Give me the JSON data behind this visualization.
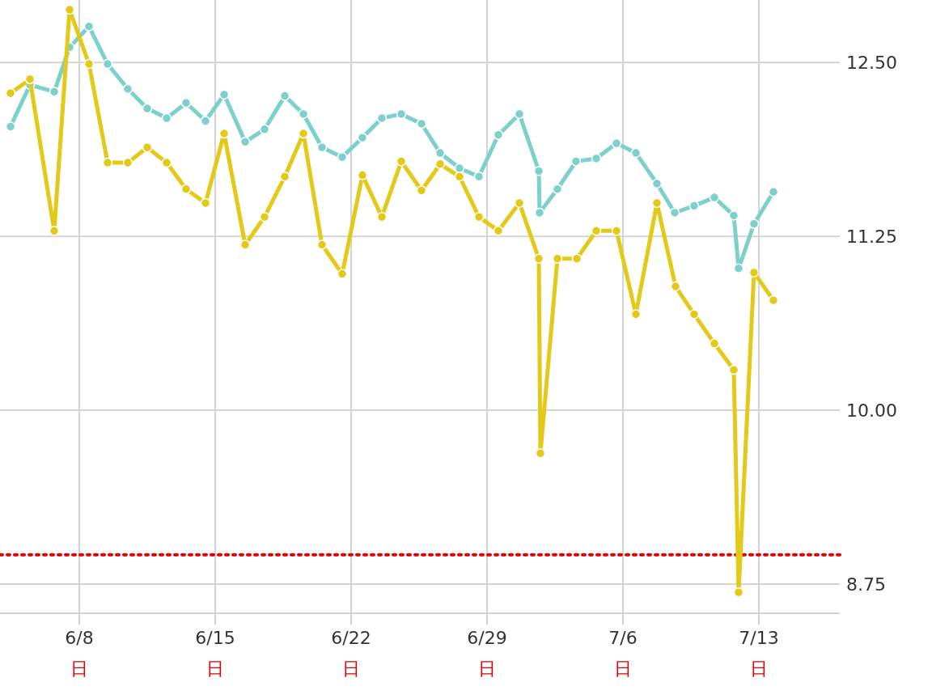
{
  "chart_data": {
    "type": "line",
    "xlim": [
      "--06-03T22:00",
      "--07-17T04:00"
    ],
    "ylim": [
      8.54,
      12.95
    ],
    "xticks": [
      {
        "value": "--06-08",
        "label": "6/8\n日"
      },
      {
        "value": "--06-15",
        "label": "6/15\n日"
      },
      {
        "value": "--06-22",
        "label": "6/22\n日"
      },
      {
        "value": "--06-29",
        "label": "6/29\n日"
      },
      {
        "value": "--07-06",
        "label": "7/6\n日"
      },
      {
        "value": "--07-13",
        "label": "7/13\n日"
      }
    ],
    "yticks": [
      {
        "value": 8.75,
        "label": "8.75"
      },
      {
        "value": 10,
        "label": "10.00"
      },
      {
        "value": 11.25,
        "label": "11.25"
      },
      {
        "value": 12.5,
        "label": "12.50"
      }
    ],
    "grid": true,
    "marker": "circle",
    "line_style": "solid",
    "series": [
      {
        "color": "#7dd0cc",
        "x": [
          "--06-04T11:00",
          "--06-05T11:00",
          "--06-06T17:00",
          "--06-07T12:00",
          "--06-08T12:00",
          "--06-09T11:00",
          "--06-10T12:00",
          "--06-11T12:00",
          "--06-12T12:00",
          "--06-13T12:00",
          "--06-14T12:00",
          "--06-15T11:00",
          "--06-16T13:00",
          "--06-17T13:00",
          "--06-18T14:00",
          "--06-19T13:00",
          "--06-20T12:00",
          "--06-21T13:00",
          "--06-22T14:00",
          "--06-23T14:00",
          "--06-24T14:00",
          "--06-25T15:00",
          "--06-26T14:00",
          "--06-27T14:00",
          "--06-28T14:00",
          "--06-29T14:00",
          "--06-30T16:00",
          "--07-01T16:00",
          "--07-01T17:00",
          "--07-02T15:00",
          "--07-03T14:00",
          "--07-04T15:00",
          "--07-05T16:00",
          "--07-06T16:00",
          "--07-07T18:00",
          "--07-08T16:00",
          "--07-09T16:00",
          "--07-10T17:00",
          "--07-11T17:00",
          "--07-11T23:00",
          "--07-12T18:00",
          "--07-13T18:00"
        ],
        "values": [
          12.04,
          12.34,
          12.29,
          12.61,
          12.76,
          12.49,
          12.31,
          12.17,
          12.1,
          12.21,
          12.08,
          12.27,
          11.93,
          12.02,
          12.26,
          12.13,
          11.89,
          11.82,
          11.96,
          12.1,
          12.13,
          12.06,
          11.85,
          11.74,
          11.68,
          11.98,
          12.13,
          11.72,
          11.42,
          11.59,
          11.79,
          11.81,
          11.92,
          11.85,
          11.63,
          11.42,
          11.47,
          11.53,
          11.4,
          11.02,
          11.34,
          11.57
        ]
      },
      {
        "color": "#e3c918",
        "x": [
          "--06-04T11:00",
          "--06-05T11:00",
          "--06-06T17:00",
          "--06-07T12:00",
          "--06-08T12:00",
          "--06-09T11:00",
          "--06-10T12:00",
          "--06-11T12:00",
          "--06-12T12:00",
          "--06-13T12:00",
          "--06-14T12:00",
          "--06-15T11:00",
          "--06-16T13:00",
          "--06-17T13:00",
          "--06-18T14:00",
          "--06-19T13:00",
          "--06-20T12:00",
          "--06-21T13:00",
          "--06-22T14:00",
          "--06-23T14:00",
          "--06-24T14:00",
          "--06-25T15:00",
          "--06-26T14:00",
          "--06-27T14:00",
          "--06-28T14:00",
          "--06-29T14:00",
          "--06-30T16:00",
          "--07-01T16:00",
          "--07-01T18:00",
          "--07-02T15:00",
          "--07-03T15:00",
          "--07-04T15:00",
          "--07-05T16:00",
          "--07-06T16:00",
          "--07-07T18:00",
          "--07-08T17:00",
          "--07-09T16:00",
          "--07-10T17:00",
          "--07-11T17:00",
          "--07-11T23:00",
          "--07-12T18:00",
          "--07-13T18:00"
        ],
        "values": [
          12.28,
          12.38,
          11.29,
          12.88,
          12.49,
          11.78,
          11.78,
          11.89,
          11.78,
          11.59,
          11.49,
          11.99,
          11.19,
          11.39,
          11.68,
          11.99,
          11.19,
          10.98,
          11.69,
          11.39,
          11.79,
          11.58,
          11.77,
          11.68,
          11.39,
          11.29,
          11.49,
          11.09,
          9.69,
          11.09,
          11.09,
          11.29,
          11.29,
          10.69,
          11.49,
          10.89,
          10.69,
          10.48,
          10.29,
          8.69,
          10.99,
          10.79
        ]
      }
    ],
    "ref_lines": [
      {
        "axis": "y",
        "value": 8.96,
        "color": "#e00000",
        "line_style": "dotted"
      }
    ]
  }
}
